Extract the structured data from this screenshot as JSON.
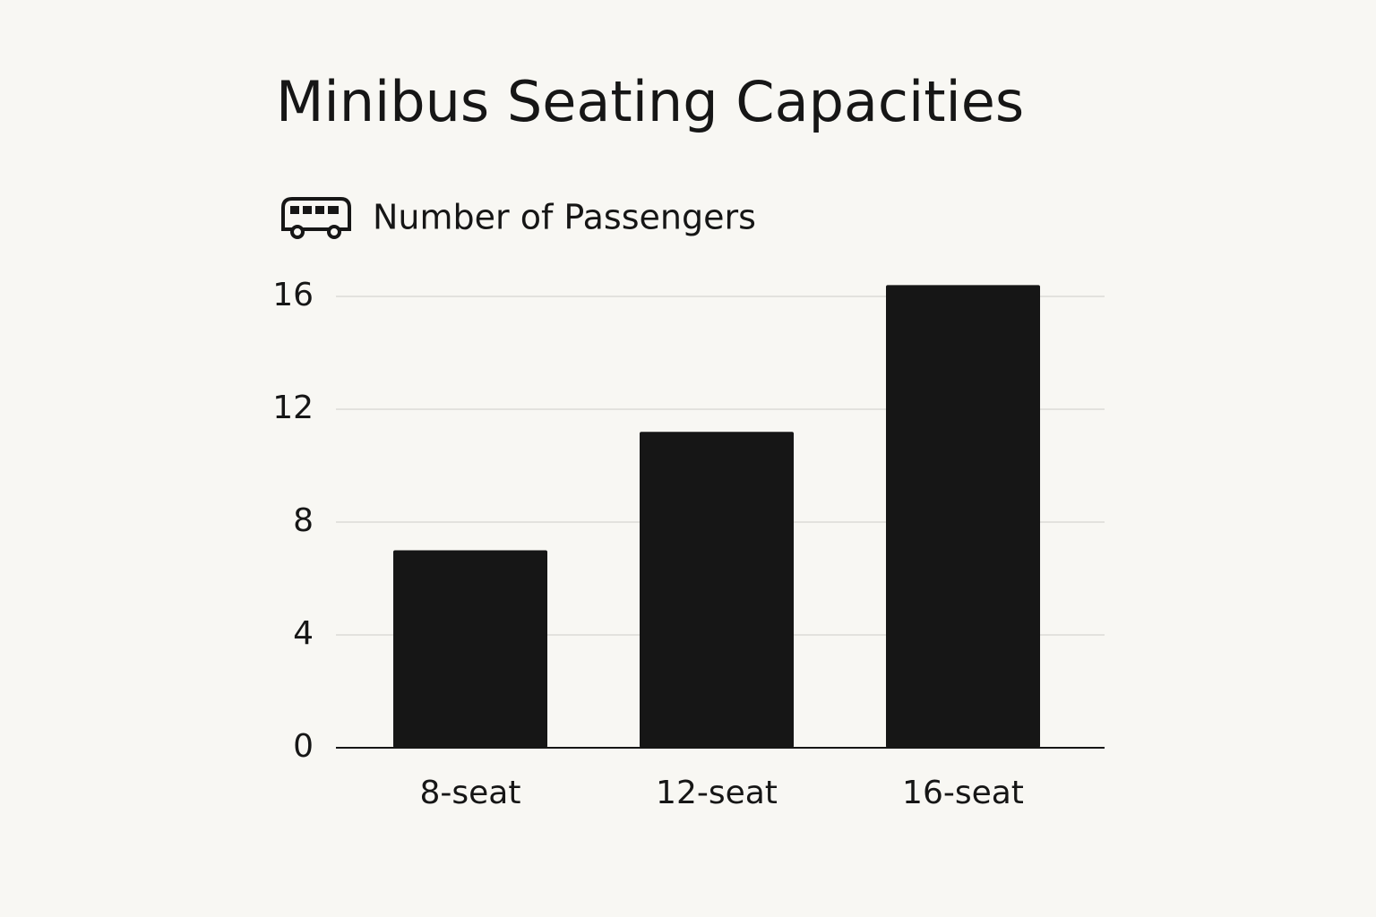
{
  "chart_data": {
    "type": "bar",
    "title": "Minibus Seating Capacities",
    "y_label": "Number of Passengers",
    "categories": [
      "8-seat",
      "12-seat",
      "16-seat"
    ],
    "values": [
      7,
      11.2,
      16.4
    ],
    "color": "#161616",
    "ylim": [
      0,
      17
    ],
    "yticks": [
      0,
      4,
      8,
      12,
      16
    ],
    "grid": true
  }
}
